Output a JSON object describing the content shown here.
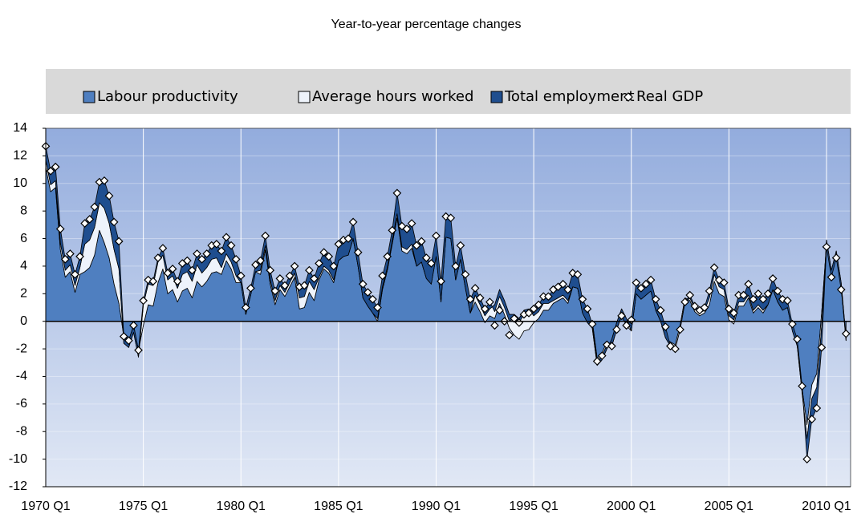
{
  "chart_data": {
    "type": "area",
    "title": "Year-to-year percentage changes",
    "categories": [
      "1970 Q1",
      null,
      null,
      null,
      null,
      null,
      null,
      null,
      null,
      null,
      null,
      null,
      null,
      null,
      null,
      null,
      null,
      null,
      null,
      null,
      "1975 Q1",
      null,
      null,
      null,
      null,
      null,
      null,
      null,
      null,
      null,
      null,
      null,
      null,
      null,
      null,
      null,
      null,
      null,
      null,
      null,
      "1980 Q1",
      null,
      null,
      null,
      null,
      null,
      null,
      null,
      null,
      null,
      null,
      null,
      null,
      null,
      null,
      null,
      null,
      null,
      null,
      null,
      "1985 Q1",
      null,
      null,
      null,
      null,
      null,
      null,
      null,
      null,
      null,
      null,
      null,
      null,
      null,
      null,
      null,
      null,
      null,
      null,
      null,
      "1990 Q1",
      null,
      null,
      null,
      null,
      null,
      null,
      null,
      null,
      null,
      null,
      null,
      null,
      null,
      null,
      null,
      null,
      null,
      null,
      null,
      "1995 Q1",
      null,
      null,
      null,
      null,
      null,
      null,
      null,
      null,
      null,
      null,
      null,
      null,
      null,
      null,
      null,
      null,
      null,
      null,
      null,
      "2000 Q1",
      null,
      null,
      null,
      null,
      null,
      null,
      null,
      null,
      null,
      null,
      null,
      null,
      null,
      null,
      null,
      null,
      null,
      null,
      null,
      "2005 Q1",
      null,
      null,
      null,
      null,
      null,
      null,
      null,
      null,
      null,
      null,
      null,
      null,
      null,
      null,
      null,
      null,
      null,
      null,
      null,
      "2010 Q1",
      null,
      null,
      null,
      null
    ],
    "series": [
      {
        "name": "Labour productivity",
        "type": "area",
        "color": "#4f7fc0",
        "values": [
          11.2,
          9.4,
          9.7,
          5.2,
          3.2,
          3.6,
          2.1,
          3.4,
          3.6,
          3.9,
          4.8,
          6.6,
          5.7,
          4.6,
          2.7,
          1.3,
          -1.1,
          -1.4,
          -0.3,
          -2.1,
          -0.3,
          1.2,
          1.1,
          2.8,
          3.8,
          2.0,
          2.3,
          1.4,
          2.2,
          2.4,
          1.7,
          2.9,
          2.5,
          2.9,
          3.5,
          3.6,
          3.4,
          4.4,
          3.8,
          2.8,
          2.8,
          0.5,
          1.9,
          3.6,
          3.4,
          5.2,
          2.7,
          1.2,
          2.3,
          1.8,
          2.5,
          3.2,
          0.9,
          1.0,
          2.1,
          1.5,
          3.0,
          3.8,
          3.5,
          2.8,
          4.4,
          4.7,
          4.8,
          6.0,
          4.0,
          1.7,
          1.1,
          0.6,
          0.0,
          2.3,
          3.7,
          5.6,
          7.5,
          5.1,
          4.9,
          5.3,
          4.0,
          4.3,
          3.1,
          2.7,
          5.2,
          1.9,
          6.6,
          6.5,
          3.0,
          4.5,
          2.4,
          0.6,
          1.4,
          0.7,
          -0.1,
          0.4,
          0.2,
          1.3,
          0.5,
          -0.5,
          -1.0,
          -1.3,
          -0.7,
          -0.6,
          -0.1,
          0.2,
          0.8,
          0.8,
          1.3,
          1.5,
          1.7,
          1.3,
          2.5,
          2.4,
          0.6,
          -0.1,
          0.0,
          -2.7,
          -2.3,
          -1.5,
          -1.8,
          -0.6,
          0.4,
          -0.3,
          -0.7,
          2.0,
          1.6,
          1.9,
          2.2,
          0.8,
          0.0,
          -1.2,
          -1.5,
          -1.7,
          -0.3,
          1.7,
          1.5,
          0.7,
          0.4,
          0.6,
          1.2,
          2.9,
          2.0,
          1.8,
          0.1,
          -0.2,
          1.1,
          1.1,
          1.7,
          0.6,
          1.0,
          0.6,
          1.2,
          2.3,
          1.4,
          0.8,
          1.3,
          -0.4,
          -1.5,
          -4.9,
          -7.5,
          -4.6,
          -3.8,
          0.6,
          5.6,
          3.4,
          4.8,
          2.5,
          -1.4
        ]
      },
      {
        "name": "Average hours worked",
        "type": "area",
        "color": "#eef3fb",
        "values": [
          0.5,
          0.5,
          0.5,
          0.5,
          0.5,
          0.5,
          0.5,
          0.5,
          2.0,
          2.0,
          2.0,
          2.0,
          2.5,
          2.5,
          2.5,
          2.5,
          -0.5,
          -0.5,
          -0.5,
          -0.5,
          1.5,
          1.5,
          1.5,
          1.5,
          1.0,
          1.0,
          1.0,
          1.0,
          1.2,
          1.2,
          1.2,
          1.2,
          1.0,
          1.0,
          1.0,
          1.0,
          0.5,
          0.5,
          0.5,
          0.5,
          0.0,
          0.0,
          0.0,
          0.0,
          0.3,
          0.3,
          0.3,
          0.3,
          0.3,
          0.3,
          0.3,
          0.3,
          0.8,
          0.8,
          0.8,
          0.8,
          0.2,
          0.2,
          0.2,
          0.2,
          0.0,
          0.0,
          0.0,
          0.0,
          0.0,
          0.0,
          0.0,
          0.0,
          0.2,
          0.2,
          0.2,
          0.2,
          0.3,
          0.3,
          0.3,
          0.3,
          0.0,
          0.0,
          0.0,
          0.0,
          -0.5,
          -0.5,
          -0.5,
          -0.5,
          0.0,
          0.0,
          0.0,
          0.0,
          0.5,
          0.5,
          0.5,
          0.5,
          1.0,
          1.0,
          1.0,
          1.0,
          1.5,
          1.5,
          1.5,
          1.5,
          0.5,
          0.5,
          0.5,
          0.5,
          0.2,
          0.2,
          0.2,
          0.2,
          0.0,
          0.0,
          0.0,
          0.0,
          -0.5,
          -0.5,
          -0.5,
          -0.5,
          0.5,
          0.5,
          0.5,
          0.5,
          0.0,
          0.0,
          0.0,
          0.0,
          0.0,
          0.0,
          0.0,
          0.0,
          -0.3,
          -0.3,
          -0.3,
          -0.3,
          0.2,
          0.2,
          0.2,
          0.2,
          0.5,
          0.5,
          0.5,
          0.5,
          0.3,
          0.3,
          0.3,
          0.3,
          0.2,
          0.2,
          0.2,
          0.2,
          0.0,
          0.0,
          0.0,
          0.0,
          -0.3,
          -0.3,
          -0.3,
          -0.3,
          -1.0,
          -1.0,
          -1.0,
          -1.0,
          0.3,
          0.3,
          0.3,
          0.3,
          0.2
        ]
      },
      {
        "name": "Total employment",
        "type": "area",
        "color": "#1f4e8f",
        "values": [
          1.0,
          1.0,
          1.0,
          1.0,
          0.8,
          0.8,
          0.8,
          0.8,
          1.5,
          1.5,
          1.5,
          1.5,
          2.0,
          2.0,
          2.0,
          2.0,
          0.5,
          0.5,
          0.5,
          0.5,
          0.3,
          0.3,
          0.3,
          0.3,
          0.5,
          0.5,
          0.5,
          0.5,
          0.8,
          0.8,
          0.8,
          0.8,
          1.0,
          1.0,
          1.0,
          1.0,
          1.2,
          1.2,
          1.2,
          1.2,
          0.5,
          0.5,
          0.5,
          0.5,
          0.7,
          0.7,
          0.7,
          0.7,
          0.5,
          0.5,
          0.5,
          0.5,
          0.8,
          0.8,
          0.8,
          0.8,
          1.0,
          1.0,
          1.0,
          1.0,
          1.2,
          1.2,
          1.2,
          1.2,
          1.0,
          1.0,
          1.0,
          1.0,
          0.8,
          0.8,
          0.8,
          0.8,
          1.5,
          1.5,
          1.5,
          1.5,
          1.5,
          1.5,
          1.5,
          1.5,
          1.5,
          1.5,
          1.5,
          1.5,
          1.0,
          1.0,
          1.0,
          1.0,
          0.5,
          0.5,
          0.5,
          0.5,
          -0.5,
          -0.5,
          -0.5,
          -0.5,
          -0.3,
          -0.3,
          -0.3,
          -0.3,
          0.5,
          0.5,
          0.5,
          0.5,
          0.8,
          0.8,
          0.8,
          0.8,
          1.0,
          1.0,
          1.0,
          1.0,
          0.3,
          0.3,
          0.3,
          0.3,
          -0.5,
          -0.5,
          -0.5,
          -0.5,
          0.8,
          0.8,
          0.8,
          0.8,
          0.8,
          0.8,
          0.8,
          0.8,
          0.0,
          0.0,
          0.0,
          0.0,
          0.2,
          0.2,
          0.2,
          0.2,
          0.5,
          0.5,
          0.5,
          0.5,
          0.5,
          0.5,
          0.5,
          0.5,
          0.8,
          0.8,
          0.8,
          0.8,
          0.8,
          0.8,
          0.8,
          0.8,
          0.5,
          0.5,
          0.5,
          0.5,
          -1.5,
          -1.5,
          -1.5,
          -1.5,
          -0.5,
          -0.5,
          -0.5,
          -0.5,
          0.3
        ]
      },
      {
        "name": "Real GDP",
        "type": "scatter",
        "marker": "diamond",
        "color": "#ffffff",
        "values": [
          12.7,
          10.9,
          11.2,
          6.7,
          4.5,
          4.9,
          3.4,
          4.7,
          7.1,
          7.4,
          8.3,
          10.1,
          10.2,
          9.1,
          7.2,
          5.8,
          -1.1,
          -1.4,
          -0.3,
          -2.1,
          1.5,
          3.0,
          2.9,
          4.6,
          5.3,
          3.5,
          3.8,
          2.9,
          4.2,
          4.4,
          3.7,
          4.9,
          4.5,
          4.9,
          5.5,
          5.6,
          5.1,
          6.1,
          5.5,
          4.5,
          3.3,
          1.0,
          2.4,
          4.1,
          4.4,
          6.2,
          3.7,
          2.2,
          3.1,
          2.6,
          3.3,
          4.0,
          2.5,
          2.6,
          3.7,
          3.1,
          4.2,
          5.0,
          4.7,
          4.0,
          5.6,
          5.9,
          6.0,
          7.2,
          5.0,
          2.7,
          2.1,
          1.6,
          1.0,
          3.3,
          4.7,
          6.6,
          9.3,
          6.9,
          6.7,
          7.1,
          5.5,
          5.8,
          4.6,
          4.2,
          6.2,
          2.9,
          7.6,
          7.5,
          4.0,
          5.5,
          3.4,
          1.6,
          2.4,
          1.7,
          0.9,
          1.4,
          -0.3,
          0.8,
          0.0,
          -1.0,
          0.2,
          -0.1,
          0.5,
          0.6,
          0.9,
          1.2,
          1.8,
          1.8,
          2.3,
          2.5,
          2.7,
          2.3,
          3.5,
          3.4,
          1.6,
          0.9,
          -0.2,
          -2.9,
          -2.5,
          -1.7,
          -1.8,
          -0.6,
          0.4,
          -0.3,
          0.1,
          2.8,
          2.4,
          2.7,
          3.0,
          1.6,
          0.8,
          -0.4,
          -1.8,
          -2.0,
          -0.6,
          1.4,
          1.9,
          1.1,
          0.8,
          1.0,
          2.2,
          3.9,
          3.0,
          2.8,
          0.9,
          0.6,
          1.9,
          1.9,
          2.7,
          1.6,
          2.0,
          1.6,
          2.0,
          3.1,
          2.2,
          1.6,
          1.5,
          -0.2,
          -1.3,
          -4.7,
          -10.0,
          -7.1,
          -6.3,
          -1.9,
          5.4,
          3.2,
          4.6,
          2.3,
          -0.9
        ]
      }
    ],
    "ylim": [
      -12,
      14
    ],
    "yticks": [
      -12,
      -10,
      -8,
      -6,
      -4,
      -2,
      0,
      2,
      4,
      6,
      8,
      10,
      12,
      14
    ],
    "grid": true,
    "legend": "top"
  }
}
